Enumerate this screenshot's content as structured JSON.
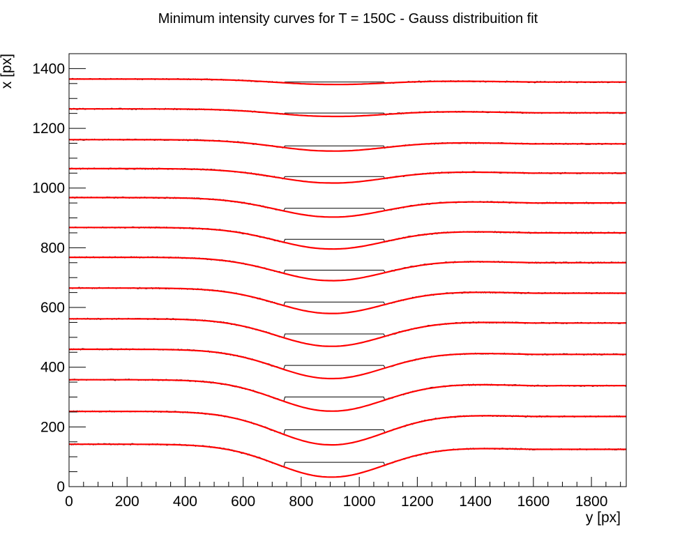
{
  "chart_data": {
    "type": "line",
    "title": "Minimum intensity curves for T = 150C - Gauss distribuition fit",
    "xlabel": "y [px]",
    "ylabel": "x [px]",
    "xlim": [
      0,
      1920
    ],
    "ylim": [
      0,
      1450
    ],
    "xticks": [
      0,
      200,
      400,
      600,
      800,
      1000,
      1200,
      1400,
      1600,
      1800
    ],
    "yticks": [
      0,
      200,
      400,
      600,
      800,
      1000,
      1200,
      1400
    ],
    "grid": false,
    "colors": {
      "data": "#000000",
      "fit": "#ff0000",
      "frame": "#000000"
    },
    "fit_model": {
      "x_center": 900,
      "width": 185,
      "curves": [
        {
          "baseline": 1365,
          "right_level": 1355,
          "depth": 18
        },
        {
          "baseline": 1265,
          "right_level": 1252,
          "depth": 25
        },
        {
          "baseline": 1162,
          "right_level": 1148,
          "depth": 38
        },
        {
          "baseline": 1065,
          "right_level": 1050,
          "depth": 48
        },
        {
          "baseline": 968,
          "right_level": 950,
          "depth": 65
        },
        {
          "baseline": 868,
          "right_level": 850,
          "depth": 72
        },
        {
          "baseline": 768,
          "right_level": 750,
          "depth": 78
        },
        {
          "baseline": 665,
          "right_level": 648,
          "depth": 85
        },
        {
          "baseline": 562,
          "right_level": 548,
          "depth": 92
        },
        {
          "baseline": 460,
          "right_level": 443,
          "depth": 98
        },
        {
          "baseline": 358,
          "right_level": 338,
          "depth": 105
        },
        {
          "baseline": 252,
          "right_level": 235,
          "depth": 112
        },
        {
          "baseline": 142,
          "right_level": 125,
          "depth": 110
        }
      ]
    }
  }
}
